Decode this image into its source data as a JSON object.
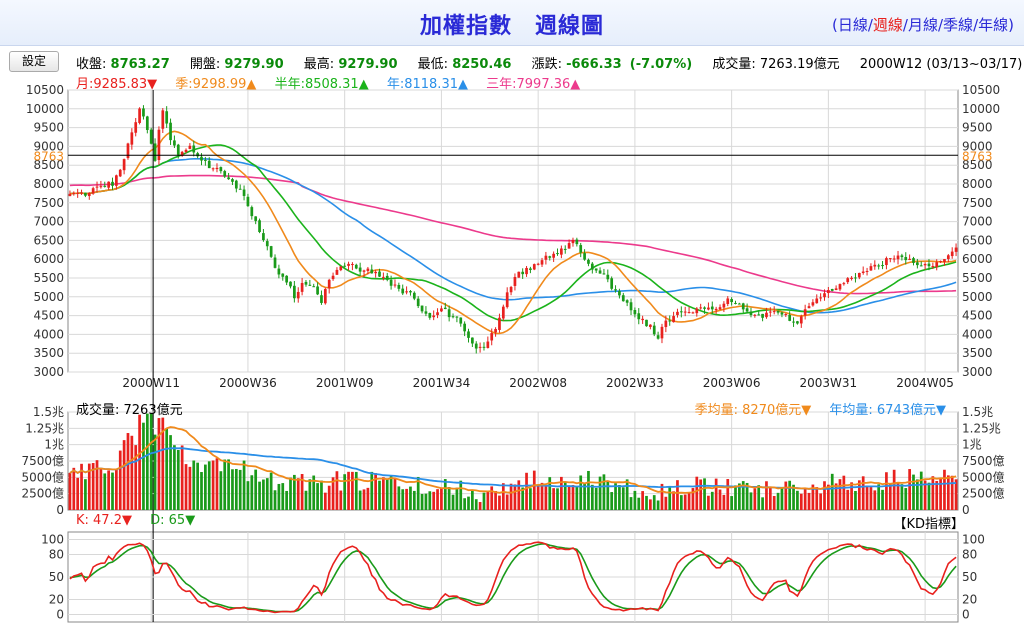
{
  "header": {
    "title": "加權指數　週線圖",
    "periods": [
      {
        "label": "日線",
        "active": false
      },
      {
        "label": "週線",
        "active": true
      },
      {
        "label": "月線",
        "active": false
      },
      {
        "label": "季線",
        "active": false
      },
      {
        "label": "年線",
        "active": false
      }
    ],
    "open_paren": "(",
    "close_paren": ")",
    "separator": "/"
  },
  "toolbar": {
    "settings_label": "設定"
  },
  "quote": {
    "close_label": "收盤:",
    "close": "8763.27",
    "open_label": "開盤:",
    "open": "9279.90",
    "high_label": "最高:",
    "high": "9279.90",
    "low_label": "最低:",
    "low": "8250.46",
    "change_label": "漲跌:",
    "change": "-666.33",
    "change_pct": "(-7.07%)",
    "volume_label": "成交量:",
    "volume": "7263.19億元",
    "week": "2000W12 (03/13~03/17)"
  },
  "ma_legend": [
    {
      "label": "月:9285.83▼",
      "color": "#e8211e"
    },
    {
      "label": "季:9298.99▲",
      "color": "#f08a1c"
    },
    {
      "label": "半年:8508.31▲",
      "color": "#1bb31b"
    },
    {
      "label": "年:8118.31▲",
      "color": "#2a8fe8"
    },
    {
      "label": "三年:7997.36▲",
      "color": "#ec3a8c"
    }
  ],
  "colors": {
    "up": "#e8211e",
    "down": "#1a9a1a",
    "month": "#e8211e",
    "quarter": "#f08a1c",
    "half": "#1bb31b",
    "year": "#2a8fe8",
    "three_year": "#ec3a8c",
    "grid": "#d8d8d8",
    "crosshair_label": "#f08a1c"
  },
  "crosshair": {
    "price_label": "8763",
    "price": 8763
  },
  "volume_panel": {
    "label": "成交量: 7263億元",
    "quarter_ma": "季均量: 8270億元▼",
    "year_ma": "年均量: 6743億元▼"
  },
  "kd_panel": {
    "k_label": "K: 47.2▼",
    "d_label": "D: 65▼",
    "button_label": "【KD指標】"
  },
  "chart_data": [
    {
      "type": "candlestick",
      "title": "加權指數 週線圖",
      "ylim": [
        3000,
        10500
      ],
      "y_ticks": [
        3000,
        3500,
        4000,
        4500,
        5000,
        5500,
        6000,
        6500,
        7000,
        7500,
        8000,
        8500,
        9000,
        9500,
        10000,
        10500
      ],
      "x_tick_labels": [
        "2000W11",
        "2000W36",
        "2001W09",
        "2001W34",
        "2002W08",
        "2002W33",
        "2003W06",
        "2003W31",
        "2004W05"
      ],
      "crosshair_week": "2000W12",
      "close_path": [
        [
          0,
          7750
        ],
        [
          4,
          7700
        ],
        [
          8,
          7950
        ],
        [
          11,
          8000
        ],
        [
          13,
          8450
        ],
        [
          15,
          9000
        ],
        [
          16,
          9450
        ],
        [
          17,
          9700
        ],
        [
          18,
          9950
        ],
        [
          19,
          9850
        ],
        [
          20,
          9400
        ],
        [
          21,
          9100
        ],
        [
          21.5,
          8763
        ],
        [
          22,
          8550
        ],
        [
          23,
          9400
        ],
        [
          24,
          9950
        ],
        [
          25,
          9650
        ],
        [
          26,
          9150
        ],
        [
          28,
          8750
        ],
        [
          31,
          8950
        ],
        [
          33,
          8700
        ],
        [
          35,
          8600
        ],
        [
          37,
          8400
        ],
        [
          40,
          8250
        ],
        [
          43,
          7950
        ],
        [
          45,
          7750
        ],
        [
          47,
          7200
        ],
        [
          49,
          6700
        ],
        [
          51,
          6300
        ],
        [
          53,
          5800
        ],
        [
          55,
          5500
        ],
        [
          57,
          5250
        ],
        [
          58,
          5000
        ],
        [
          60,
          5350
        ],
        [
          63,
          5250
        ],
        [
          65,
          4900
        ],
        [
          66,
          5250
        ],
        [
          68,
          5500
        ],
        [
          70,
          5850
        ],
        [
          72,
          5900
        ],
        [
          74,
          5750
        ],
        [
          76,
          5750
        ],
        [
          79,
          5600
        ],
        [
          82,
          5400
        ],
        [
          85,
          5200
        ],
        [
          88,
          5050
        ],
        [
          90,
          4700
        ],
        [
          93,
          4400
        ],
        [
          96,
          4700
        ],
        [
          98,
          4500
        ],
        [
          100,
          4400
        ],
        [
          102,
          4150
        ],
        [
          104,
          3700
        ],
        [
          106,
          3600
        ],
        [
          108,
          3800
        ],
        [
          110,
          4200
        ],
        [
          112,
          4800
        ],
        [
          114,
          5300
        ],
        [
          116,
          5600
        ],
        [
          118,
          5700
        ],
        [
          120,
          5800
        ],
        [
          122,
          6000
        ],
        [
          124,
          6100
        ],
        [
          126,
          6200
        ],
        [
          128,
          6300
        ],
        [
          130,
          6450
        ],
        [
          132,
          6200
        ],
        [
          134,
          5900
        ],
        [
          136,
          5700
        ],
        [
          138,
          5600
        ],
        [
          140,
          5200
        ],
        [
          142,
          5000
        ],
        [
          144,
          4800
        ],
        [
          146,
          4600
        ],
        [
          148,
          4350
        ],
        [
          150,
          4200
        ],
        [
          152,
          3950
        ],
        [
          154,
          4300
        ],
        [
          156,
          4550
        ],
        [
          158,
          4650
        ],
        [
          161,
          4600
        ],
        [
          164,
          4750
        ],
        [
          166,
          4700
        ],
        [
          168,
          4650
        ],
        [
          170,
          4900
        ],
        [
          172,
          4850
        ],
        [
          175,
          4600
        ],
        [
          178,
          4500
        ],
        [
          181,
          4550
        ],
        [
          184,
          4600
        ],
        [
          186,
          4350
        ],
        [
          188,
          4300
        ],
        [
          190,
          4600
        ],
        [
          193,
          4950
        ],
        [
          196,
          5150
        ],
        [
          199,
          5350
        ],
        [
          202,
          5500
        ],
        [
          205,
          5650
        ],
        [
          208,
          5800
        ],
        [
          211,
          5950
        ],
        [
          214,
          6050
        ],
        [
          217,
          5950
        ],
        [
          220,
          5800
        ],
        [
          223,
          5850
        ],
        [
          226,
          5950
        ],
        [
          229,
          6300
        ]
      ],
      "week_count": 230
    },
    {
      "type": "bar",
      "title": "成交量",
      "y_tick_labels": [
        "0",
        "2500億",
        "5000億",
        "7500億",
        "1兆",
        "1.25兆",
        "1.5兆"
      ],
      "ylim": [
        0,
        15000
      ],
      "unit": "億元"
    },
    {
      "type": "line",
      "title": "KD",
      "ylim": [
        -10,
        110
      ],
      "y_ticks": [
        0,
        20,
        50,
        80,
        100
      ],
      "series": [
        {
          "name": "K"
        },
        {
          "name": "D"
        }
      ]
    }
  ]
}
